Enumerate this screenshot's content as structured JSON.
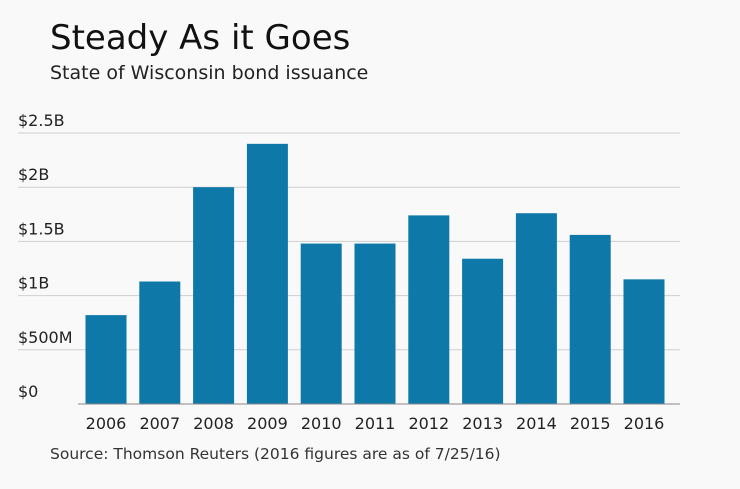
{
  "title": "Steady As it Goes",
  "subtitle": "State of Wisconsin bond issuance",
  "source": "Source: Thomson Reuters (2016 figures are as of 7/25/16)",
  "colors": {
    "bar": "#0e78a8",
    "grid": "#cfcfcf",
    "axis": "#888888",
    "background": "#f9f9f9"
  },
  "chart_data": {
    "type": "bar",
    "title": "Steady As it Goes",
    "subtitle": "State of Wisconsin bond issuance",
    "xlabel": "",
    "ylabel": "",
    "categories": [
      "2006",
      "2007",
      "2008",
      "2009",
      "2010",
      "2011",
      "2012",
      "2013",
      "2014",
      "2015",
      "2016"
    ],
    "values": [
      0.82,
      1.13,
      2.0,
      2.4,
      1.48,
      1.48,
      1.74,
      1.34,
      1.76,
      1.56,
      1.15
    ],
    "unit": "billions of dollars",
    "ylim": [
      0,
      2.5
    ],
    "yticks": [
      {
        "value": 0,
        "label": "$0"
      },
      {
        "value": 0.5,
        "label": "$500M"
      },
      {
        "value": 1,
        "label": "$1B"
      },
      {
        "value": 1.5,
        "label": "$1.5B"
      },
      {
        "value": 2,
        "label": "$2B"
      },
      {
        "value": 2.5,
        "label": "$2.5B"
      }
    ],
    "grid": true,
    "legend": "none"
  }
}
